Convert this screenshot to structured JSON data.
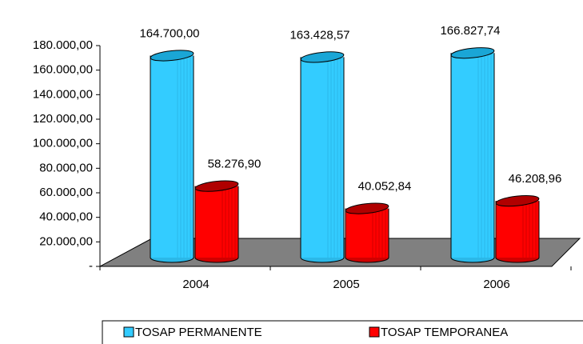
{
  "chart_data": {
    "type": "bar",
    "categories": [
      "2004",
      "2005",
      "2006"
    ],
    "series": [
      {
        "name": "TOSAP PERMANENTE",
        "color": "#33ccff",
        "values": [
          164700.0,
          163428.57,
          166827.74
        ],
        "value_labels": [
          "164.700,00",
          "163.428,57",
          "166.827,74"
        ]
      },
      {
        "name": "TOSAP TEMPORANEA",
        "color": "#ff0000",
        "values": [
          58276.9,
          40052.84,
          46208.96
        ],
        "value_labels": [
          "58.276,90",
          "40.052,84",
          "46.208,96"
        ]
      }
    ],
    "ylim": [
      0,
      180000
    ],
    "yticks": [
      {
        "value": 0,
        "label": "-"
      },
      {
        "value": 20000,
        "label": "20.000,00"
      },
      {
        "value": 40000,
        "label": "40.000,00"
      },
      {
        "value": 60000,
        "label": "60.000,00"
      },
      {
        "value": 80000,
        "label": "80.000,00"
      },
      {
        "value": 100000,
        "label": "100.000,00"
      },
      {
        "value": 120000,
        "label": "120.000,00"
      },
      {
        "value": 140000,
        "label": "140.000,00"
      },
      {
        "value": 160000,
        "label": "160.000,00"
      },
      {
        "value": 180000,
        "label": "180.000,00"
      }
    ],
    "legend": "bottom"
  }
}
